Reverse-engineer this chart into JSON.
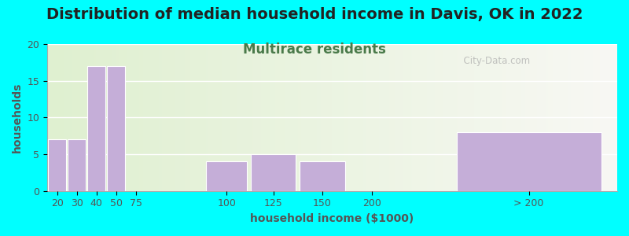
{
  "title": "Distribution of median household income in Davis, OK in 2022",
  "subtitle": "Multirace residents",
  "xlabel": "household income ($1000)",
  "ylabel": "households",
  "bar_labels": [
    "20",
    "30",
    "40",
    "50",
    "75",
    "100",
    "125",
    "150",
    "200",
    "> 200"
  ],
  "bar_values": [
    7,
    7,
    17,
    17,
    0,
    4,
    5,
    4,
    0,
    8
  ],
  "bar_left_edges": [
    10,
    20,
    30,
    40,
    50,
    90,
    112.5,
    137.5,
    162.5,
    215
  ],
  "bar_widths": [
    10,
    10,
    10,
    10,
    10,
    22.5,
    25,
    25,
    25,
    80
  ],
  "bar_color": "#c5aed8",
  "bar_edgecolor": "white",
  "background_outer": "#00ffff",
  "background_inner_color_left": "#dff0d0",
  "background_inner_color_right": "#f8f8f4",
  "ylim": [
    0,
    20
  ],
  "yticks": [
    0,
    5,
    10,
    15,
    20
  ],
  "xlim_left": 10,
  "xlim_right": 300,
  "title_fontsize": 14,
  "subtitle_fontsize": 12,
  "subtitle_color": "#4a7a4a",
  "axis_label_fontsize": 10,
  "tick_fontsize": 9,
  "watermark": "  City-Data.com"
}
